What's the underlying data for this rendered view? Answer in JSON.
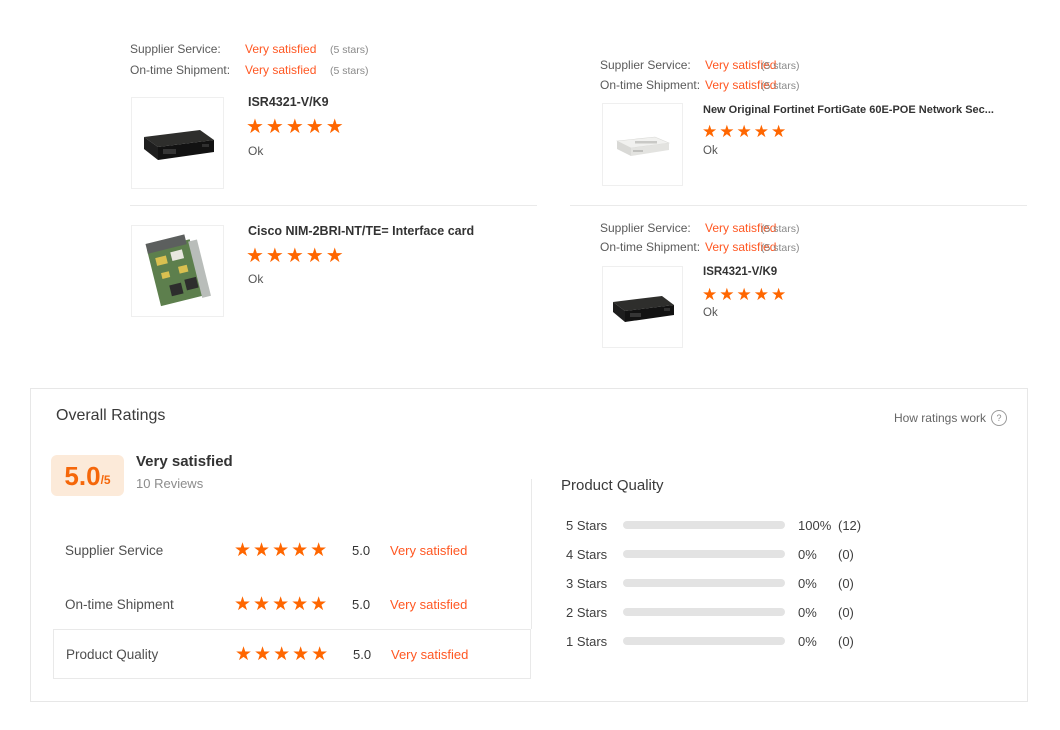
{
  "colors": {
    "accent_orange": "#ff6600",
    "text_orange": "#ff5722",
    "bar_orange": "#f96c00",
    "badge_bg": "#fcead9",
    "bar_gray": "#e3e3e3"
  },
  "icons": {
    "stars_five": "★★★★★",
    "question_mark": "?"
  },
  "reviews": [
    {
      "supplier_service_label": "Supplier Service:",
      "supplier_service_value": "Very satisfied",
      "supplier_service_note": "(5 stars)",
      "ontime_label": "On-time Shipment:",
      "ontime_value": "Very satisfied",
      "ontime_note": "(5 stars)",
      "product_title": "ISR4321-V/K9",
      "comment": "Ok",
      "image": "black-router"
    },
    {
      "product_title": "Cisco NIM-2BRI-NT/TE= Interface card",
      "comment": "Ok",
      "image": "green-interface-card"
    },
    {
      "supplier_service_label": "Supplier Service:",
      "supplier_service_value": "Very satisfied",
      "supplier_service_note": "(5 stars)",
      "ontime_label": "On-time Shipment:",
      "ontime_value": "Very satisfied",
      "ontime_note": "(5 stars)",
      "product_title": "New Original Fortinet FortiGate 60E-POE Network Sec...",
      "comment": "Ok",
      "image": "white-firewall"
    },
    {
      "supplier_service_label": "Supplier Service:",
      "supplier_service_value": "Very satisfied",
      "supplier_service_note": "(5 stars)",
      "ontime_label": "On-time Shipment:",
      "ontime_value": "Very satisfied",
      "ontime_note": "(5 stars)",
      "product_title": "ISR4321-V/K9",
      "comment": "Ok",
      "image": "black-router"
    }
  ],
  "overall": {
    "title": "Overall Ratings",
    "help_link": "How ratings work",
    "score": "5.0",
    "score_suffix": "/5",
    "score_text": "Very satisfied",
    "review_count": "10 Reviews",
    "rows": [
      {
        "label": "Supplier Service",
        "score": "5.0",
        "text": "Very satisfied",
        "selected": false
      },
      {
        "label": "On-time Shipment",
        "score": "5.0",
        "text": "Very satisfied",
        "selected": false
      },
      {
        "label": "Product Quality",
        "score": "5.0",
        "text": "Very satisfied",
        "selected": true
      }
    ],
    "breakdown": {
      "title": "Product Quality",
      "bars": [
        {
          "label": "5 Stars",
          "percent": 100,
          "percent_text": "100%",
          "count_text": "(12)"
        },
        {
          "label": "4 Stars",
          "percent": 0,
          "percent_text": "0%",
          "count_text": "(0)"
        },
        {
          "label": "3 Stars",
          "percent": 0,
          "percent_text": "0%",
          "count_text": "(0)"
        },
        {
          "label": "2 Stars",
          "percent": 0,
          "percent_text": "0%",
          "count_text": "(0)"
        },
        {
          "label": "1 Stars",
          "percent": 0,
          "percent_text": "0%",
          "count_text": "(0)"
        }
      ]
    }
  }
}
